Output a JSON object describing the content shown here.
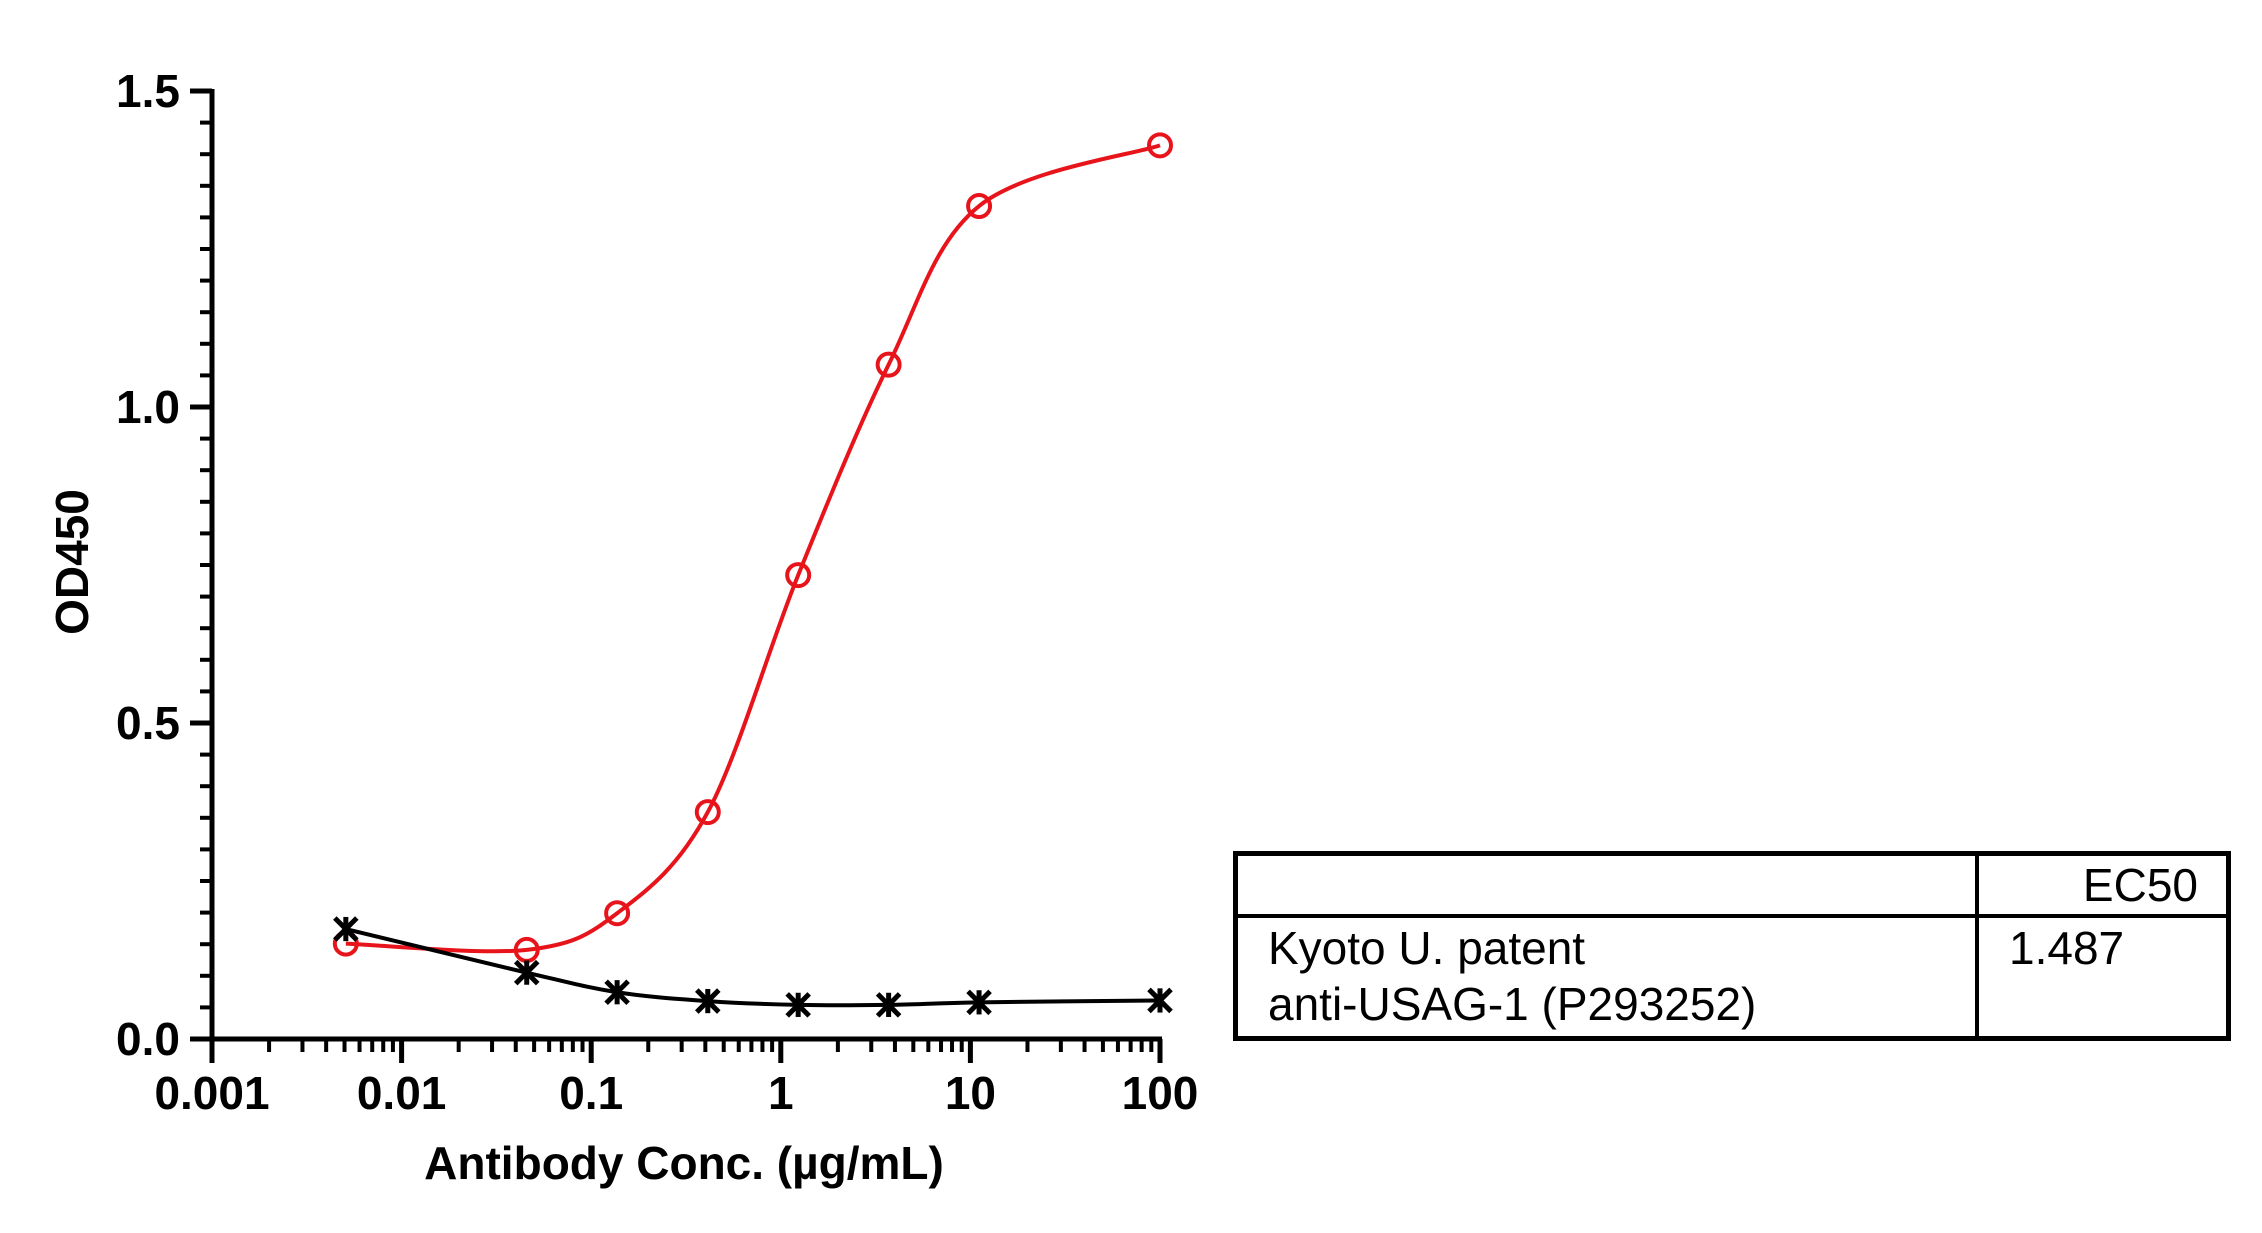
{
  "chart_data": {
    "type": "scatter",
    "xlabel": "Antibody Conc. (µg/mL)",
    "ylabel": "OD450",
    "x_scale": "log",
    "xlim": [
      0.001,
      100
    ],
    "ylim": [
      0,
      1.5
    ],
    "x_ticks": [
      "0.001",
      "0.01",
      "0.1",
      "1",
      "10",
      "100"
    ],
    "y_ticks": [
      "0.0",
      "0.5",
      "1.0",
      "1.5"
    ],
    "grid": false,
    "series": [
      {
        "color": "#e8141b",
        "marker": "open-circle",
        "fit": "sigmoidal",
        "x": [
          0.00508,
          0.0457,
          0.137,
          0.412,
          1.235,
          3.704,
          11.11,
          100
        ],
        "y": [
          0.151,
          0.141,
          0.199,
          0.359,
          0.734,
          1.067,
          1.318,
          1.414
        ]
      },
      {
        "color": "#000000",
        "marker": "x-star",
        "fit": "sigmoidal",
        "x": [
          0.00508,
          0.0457,
          0.137,
          0.412,
          1.235,
          3.704,
          11.11,
          100
        ],
        "y": [
          0.174,
          0.105,
          0.074,
          0.06,
          0.054,
          0.054,
          0.058,
          0.061
        ]
      }
    ]
  },
  "table": {
    "header": "EC50",
    "row_label_line1": "Kyoto U. patent",
    "row_label_line2": "anti-USAG-1 (P293252)",
    "row_value": "1.487"
  }
}
